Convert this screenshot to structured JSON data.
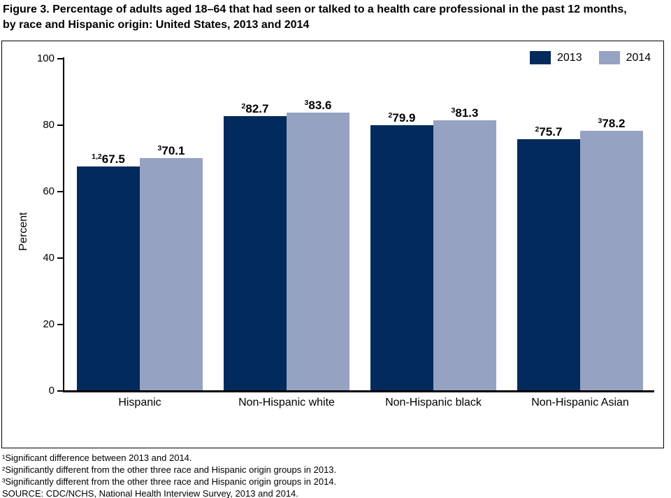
{
  "figure": {
    "title_line1": "Figure 3. Percentage of adults aged 18–64 that had seen or talked to a health care professional in the past 12 months,",
    "title_line2": "by race and Hispanic origin: United States, 2013 and 2014"
  },
  "chart_data": {
    "type": "bar",
    "title": "Figure 3. Percentage of adults aged 18–64 that had seen or talked to a health care professional in the past 12 months, by race and Hispanic origin: United States, 2013 and 2014",
    "categories": [
      "Hispanic",
      "Non-Hispanic white",
      "Non-Hispanic black",
      "Non-Hispanic Asian"
    ],
    "series": [
      {
        "name": "2013",
        "color": "#032a5c",
        "values": [
          67.5,
          82.7,
          79.9,
          75.7
        ],
        "value_label_superscripts": [
          "1,2",
          "2",
          "2",
          "2"
        ]
      },
      {
        "name": "2014",
        "color": "#96a2c2",
        "values": [
          70.1,
          83.6,
          81.3,
          78.2
        ],
        "value_label_superscripts": [
          "3",
          "3",
          "3",
          "3"
        ]
      }
    ],
    "xlabel": "",
    "ylabel": "Percent",
    "ylim": [
      0,
      100
    ],
    "yticks": [
      0,
      20,
      40,
      60,
      80,
      100
    ],
    "grid": false,
    "legend_position": "top-right"
  },
  "footnotes": [
    "¹Significant difference between 2013 and 2014.",
    "²Significantly different from the other three race and Hispanic origin groups in 2013.",
    "³Significantly different from the other three race and Hispanic origin groups in 2014.",
    "SOURCE: CDC/NCHS, National Health Interview Survey, 2013 and 2014."
  ]
}
